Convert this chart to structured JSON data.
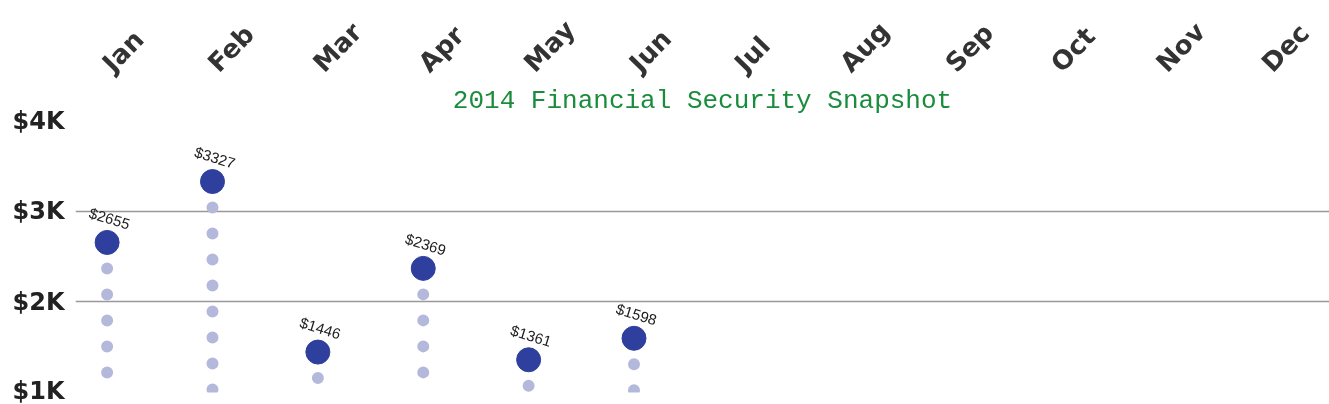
{
  "chart_data": {
    "type": "lollipop",
    "title": "2014 Financial Security Snapshot",
    "categories": [
      "Jan",
      "Feb",
      "Mar",
      "Apr",
      "May",
      "Jun",
      "Jul",
      "Aug",
      "Sep",
      "Oct",
      "Nov",
      "Dec"
    ],
    "series": [
      {
        "color": "#2e3f9e",
        "values": [
          2655,
          3327,
          1446,
          2369,
          1361,
          1598,
          null,
          null,
          null,
          null,
          null,
          null
        ],
        "value_labels": [
          "$2655",
          "$3327",
          "$1446",
          "$2369",
          "$1361",
          "$1598",
          null,
          null,
          null,
          null,
          null,
          null
        ]
      }
    ],
    "ylim": [
      1000,
      4000
    ],
    "yticks": [
      {
        "value": 1000,
        "label": "$1K"
      },
      {
        "value": 2000,
        "label": "$2K"
      },
      {
        "value": 3000,
        "label": "$3K"
      },
      {
        "value": 4000,
        "label": "$4K"
      }
    ],
    "grid": "y",
    "line_style": "dotted",
    "marker": "circle"
  }
}
